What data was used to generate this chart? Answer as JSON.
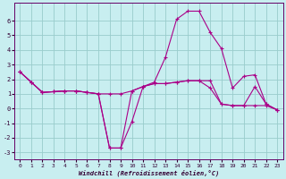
{
  "xlabel": "Windchill (Refroidissement éolien,°C)",
  "bg_color": "#c8eef0",
  "line_color": "#aa0088",
  "grid_color": "#99cccc",
  "xlim": [
    -0.5,
    23.5
  ],
  "ylim": [
    -3.5,
    7.2
  ],
  "yticks": [
    -3,
    -2,
    -1,
    0,
    1,
    2,
    3,
    4,
    5,
    6
  ],
  "xticks": [
    0,
    1,
    2,
    3,
    4,
    5,
    6,
    7,
    8,
    9,
    10,
    11,
    12,
    13,
    14,
    15,
    16,
    17,
    18,
    19,
    20,
    21,
    22,
    23
  ],
  "series": [
    {
      "x": [
        0,
        1,
        2,
        3,
        4,
        5,
        6,
        7,
        8,
        9,
        10,
        11,
        12,
        13,
        14,
        15,
        16,
        17,
        18,
        19,
        20,
        21,
        22,
        23
      ],
      "y": [
        2.5,
        1.8,
        1.1,
        1.15,
        1.2,
        1.2,
        1.1,
        1.0,
        -2.7,
        -2.7,
        -0.9,
        1.5,
        1.8,
        3.5,
        6.1,
        6.65,
        6.65,
        5.2,
        4.1,
        1.4,
        2.2,
        2.3,
        0.3,
        -0.1
      ]
    },
    {
      "x": [
        0,
        1,
        2,
        3,
        4,
        5,
        6,
        7,
        8,
        9,
        10,
        11,
        12,
        13,
        14,
        15,
        16,
        17,
        18,
        19,
        20,
        21,
        22,
        23
      ],
      "y": [
        2.5,
        1.8,
        1.1,
        1.15,
        1.2,
        1.2,
        1.1,
        1.0,
        -2.7,
        -2.7,
        1.2,
        1.5,
        1.7,
        1.7,
        1.8,
        1.9,
        1.9,
        1.4,
        0.3,
        0.2,
        0.2,
        1.5,
        0.3,
        -0.1
      ]
    },
    {
      "x": [
        0,
        1,
        2,
        3,
        4,
        5,
        6,
        7,
        8,
        9,
        10,
        11,
        12,
        13,
        14,
        15,
        16,
        17,
        18,
        19,
        20,
        21,
        22,
        23
      ],
      "y": [
        2.5,
        1.8,
        1.1,
        1.15,
        1.2,
        1.2,
        1.1,
        1.0,
        1.0,
        1.0,
        1.2,
        1.5,
        1.7,
        1.7,
        1.8,
        1.9,
        1.9,
        1.9,
        0.3,
        0.2,
        0.2,
        0.2,
        0.2,
        -0.1
      ]
    }
  ]
}
